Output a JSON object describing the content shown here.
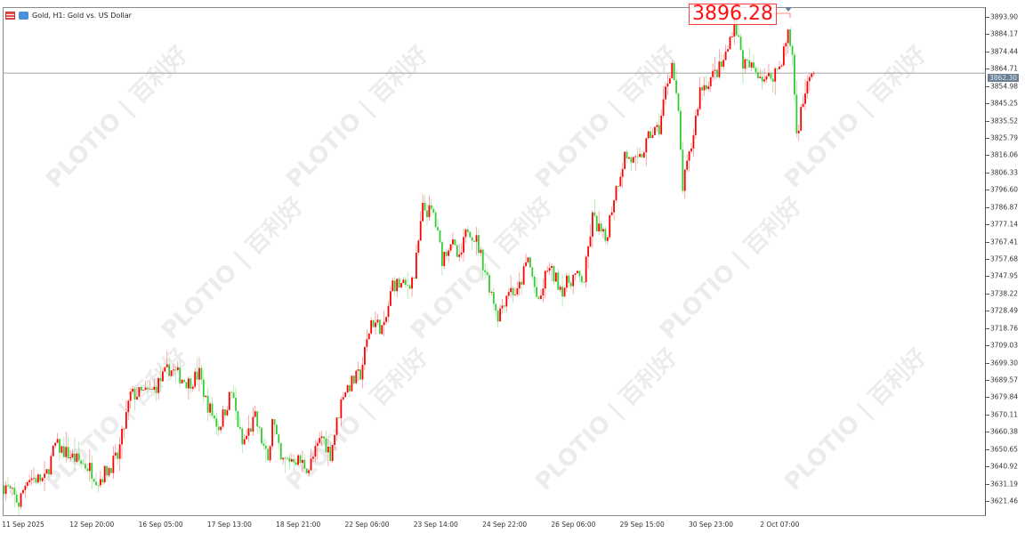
{
  "header": {
    "symbol_title": "Gold, H1:  Gold vs. US Dollar"
  },
  "watermark": "PLOTIO | 百利好",
  "current_price": "3862.30",
  "max_label": "3896.28",
  "colors": {
    "bull": "#ff0000",
    "bear": "#33cc33",
    "price_line": "#a0a0a0",
    "price_tag": "#6b7f95"
  },
  "chart_data": {
    "type": "candlestick",
    "symbol": "Gold",
    "timeframe": "H1",
    "y_ticks": [
      "3893.90",
      "3884.17",
      "3874.44",
      "3864.71",
      "3854.98",
      "3845.25",
      "3835.52",
      "3825.79",
      "3816.06",
      "3806.33",
      "3796.60",
      "3786.87",
      "3777.14",
      "3767.41",
      "3757.68",
      "3747.95",
      "3738.22",
      "3728.49",
      "3718.76",
      "3709.03",
      "3699.30",
      "3689.57",
      "3679.84",
      "3670.11",
      "3660.38",
      "3650.65",
      "3640.92",
      "3631.19",
      "3621.46"
    ],
    "x_ticks": [
      "11 Sep 2025",
      "12 Sep 20:00",
      "16 Sep 05:00",
      "17 Sep 13:00",
      "18 Sep 21:00",
      "22 Sep 06:00",
      "23 Sep 14:00",
      "24 Sep 22:00",
      "26 Sep 06:00",
      "29 Sep 15:00",
      "30 Sep 23:00",
      "2 Oct 07:00"
    ],
    "ylim": [
      3617,
      3900
    ],
    "bars": 378,
    "approx_close_path": [
      [
        1,
        3630
      ],
      [
        7,
        3620
      ],
      [
        11,
        3635
      ],
      [
        19,
        3633
      ],
      [
        24,
        3653
      ],
      [
        32,
        3646
      ],
      [
        40,
        3640
      ],
      [
        44,
        3633
      ],
      [
        53,
        3646
      ],
      [
        59,
        3681
      ],
      [
        69,
        3683
      ],
      [
        77,
        3696
      ],
      [
        86,
        3688
      ],
      [
        91,
        3693
      ],
      [
        94,
        3678
      ],
      [
        100,
        3663
      ],
      [
        106,
        3683
      ],
      [
        111,
        3653
      ],
      [
        117,
        3668
      ],
      [
        123,
        3643
      ],
      [
        125,
        3670
      ],
      [
        129,
        3643
      ],
      [
        135,
        3646
      ],
      [
        142,
        3640
      ],
      [
        148,
        3658
      ],
      [
        152,
        3648
      ],
      [
        158,
        3683
      ],
      [
        162,
        3688
      ],
      [
        166,
        3693
      ],
      [
        171,
        3723
      ],
      [
        177,
        3718
      ],
      [
        181,
        3744
      ],
      [
        187,
        3742
      ],
      [
        191,
        3748
      ],
      [
        195,
        3786
      ],
      [
        200,
        3783
      ],
      [
        204,
        3758
      ],
      [
        208,
        3768
      ],
      [
        212,
        3756
      ],
      [
        216,
        3776
      ],
      [
        220,
        3768
      ],
      [
        226,
        3743
      ],
      [
        230,
        3726
      ],
      [
        235,
        3741
      ],
      [
        239,
        3738
      ],
      [
        244,
        3758
      ],
      [
        249,
        3731
      ],
      [
        253,
        3753
      ],
      [
        260,
        3741
      ],
      [
        265,
        3748
      ],
      [
        270,
        3746
      ],
      [
        274,
        3781
      ],
      [
        280,
        3768
      ],
      [
        284,
        3793
      ],
      [
        289,
        3816
      ],
      [
        295,
        3811
      ],
      [
        301,
        3828
      ],
      [
        305,
        3831
      ],
      [
        308,
        3853
      ],
      [
        311,
        3868
      ],
      [
        314,
        3838
      ],
      [
        316,
        3798
      ],
      [
        320,
        3821
      ],
      [
        324,
        3853
      ],
      [
        328,
        3858
      ],
      [
        334,
        3866
      ],
      [
        337,
        3876
      ],
      [
        340,
        3893
      ],
      [
        344,
        3868
      ],
      [
        351,
        3863
      ],
      [
        355,
        3858
      ],
      [
        361,
        3866
      ],
      [
        365,
        3884
      ],
      [
        367,
        3873
      ],
      [
        369,
        3828
      ],
      [
        373,
        3853
      ],
      [
        377,
        3862.3
      ]
    ],
    "max_price": 3896.28,
    "last_price": 3862.3
  }
}
